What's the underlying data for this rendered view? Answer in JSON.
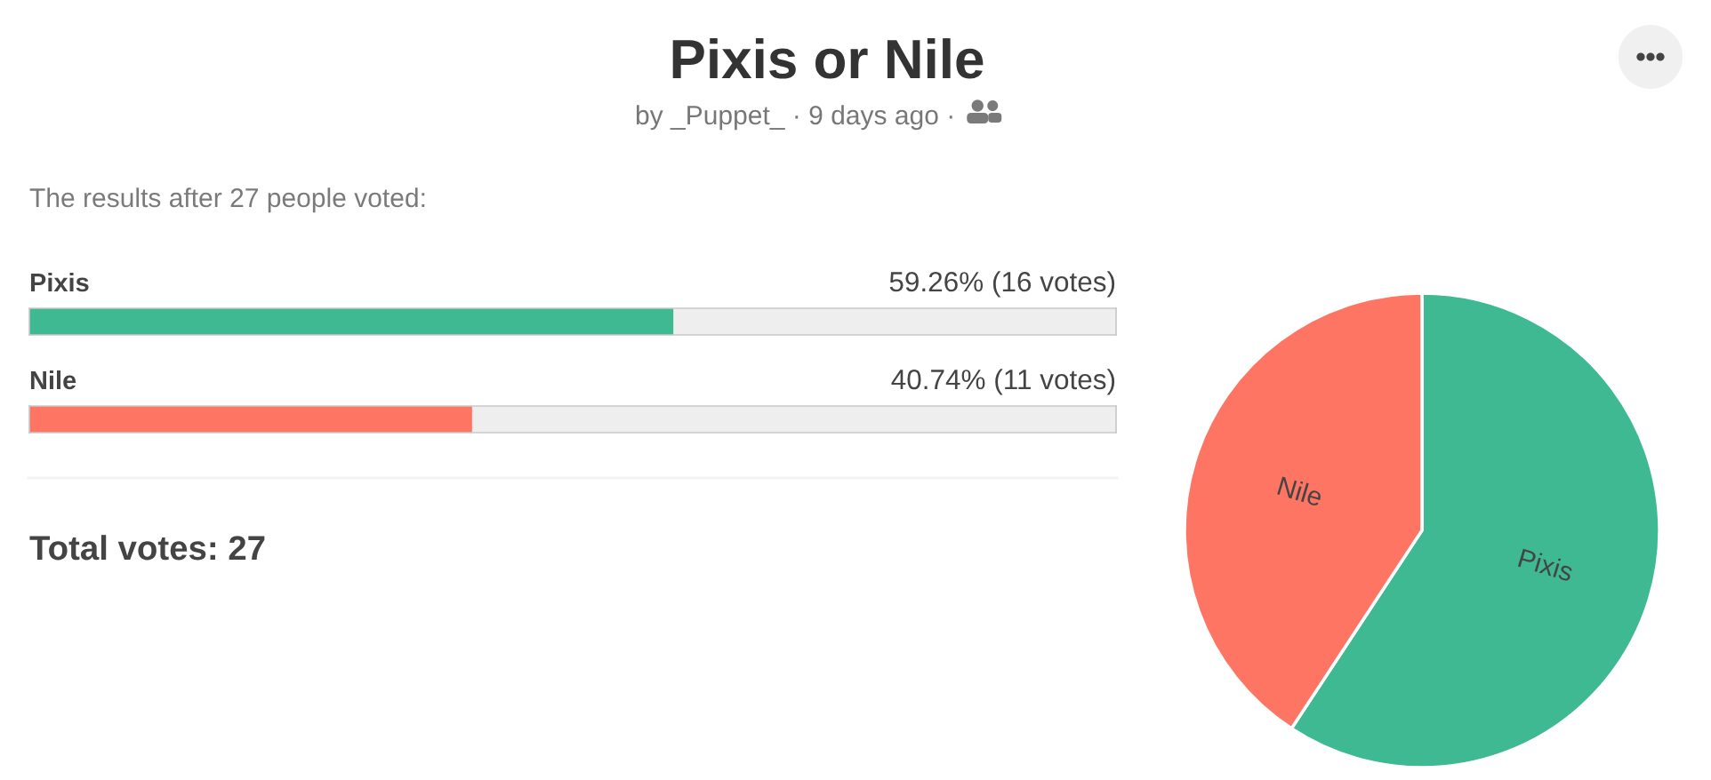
{
  "chart_data": [
    {
      "type": "bar",
      "orientation": "horizontal",
      "title": "Pixis or Nile",
      "subtitle": "by _Puppet_ · 9 days ago ·",
      "annotations": [
        "The results after 27 people voted:",
        "Total votes: 27"
      ],
      "categories": [
        "Pixis",
        "Nile"
      ],
      "values": [
        59.26,
        40.74
      ],
      "colors": [
        "#3eb991",
        "#ff7563"
      ],
      "value_labels": [
        "59.26% (16 votes)",
        "40.74% (11 votes)"
      ],
      "xlim": [
        0,
        100
      ],
      "tick_labels": "y"
    },
    {
      "type": "pie",
      "categories": [
        "Pixis",
        "Nile"
      ],
      "values": [
        59.26,
        40.74
      ],
      "colors": [
        "#3eb991",
        "#ff7563"
      ]
    }
  ]
}
